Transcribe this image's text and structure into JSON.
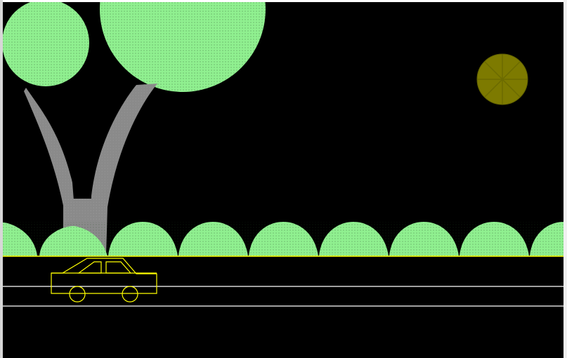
{
  "window": {
    "background": "#000000"
  },
  "scene": {
    "tree_canopy_color": "#90f090",
    "tree_trunk_color": "#8a8a8a",
    "bush_color": "#90f090",
    "moon_color": "#7d7a00",
    "moon_outline_color": "#5f5f00",
    "road_line_color": "#ffffff",
    "ground_line_color": "#ffff00",
    "car_outline_color": "#ffff00"
  }
}
